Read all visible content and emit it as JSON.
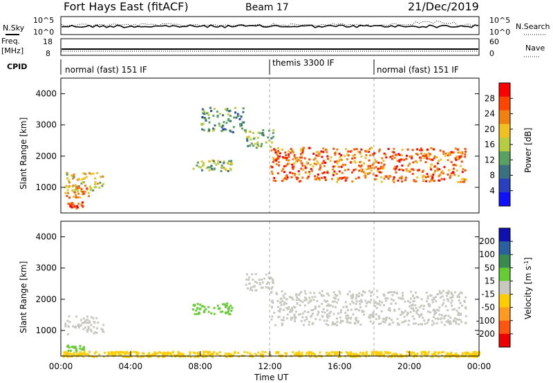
{
  "header": {
    "title": "Fort Hays East (fitACF)",
    "beam": "Beam 17",
    "date": "21/Dec/2019"
  },
  "left_labels": {
    "nsky": "N.Sky",
    "freq_top": "Freq.",
    "freq_unit": "[MHz]",
    "cpid": "CPID"
  },
  "right_labels": {
    "nsearch": "N.Search",
    "nave": "Nave"
  },
  "noise_axis": {
    "left_ticks": [
      "10^5",
      "10^0"
    ],
    "right_ticks": [
      "10^5",
      "10^0"
    ]
  },
  "freq_axis": {
    "left_ticks": [
      "18",
      "8"
    ],
    "right_ticks": [
      "60",
      "0"
    ]
  },
  "cpid_segments": [
    {
      "label": "normal (fast) 151 IF",
      "start_hour": 0
    },
    {
      "label": "themis 3300 IF",
      "start_hour": 12
    },
    {
      "label": "normal (fast) 151 IF",
      "start_hour": 18
    }
  ],
  "power_panel": {
    "ylabel": "Slant Range [km]",
    "yticks": [
      1000,
      2000,
      3000,
      4000
    ],
    "colorbar_label": "Power [dB]",
    "colorbar_ticks": [
      "28",
      "24",
      "20",
      "16",
      "12",
      "8",
      "4"
    ],
    "colorbar_colors": [
      "#ff0000",
      "#ff4500",
      "#f08010",
      "#f0c020",
      "#b8cc40",
      "#5aa060",
      "#3a7080",
      "#2840c0",
      "#1010ff"
    ]
  },
  "velocity_panel": {
    "ylabel": "Slant Range [km]",
    "yticks": [
      1000,
      2000,
      3000,
      4000
    ],
    "colorbar_label": "Velocity [m s^-1]",
    "colorbar_ticks": [
      "200",
      "100",
      "50",
      "15",
      "-15",
      "-50",
      "-100",
      "-200"
    ],
    "colorbar_colors": [
      "#1010b0",
      "#2a60a0",
      "#3a8a50",
      "#66cc33",
      "#c8c8c0",
      "#ffcc00",
      "#ff9922",
      "#ff5511",
      "#ee0000"
    ]
  },
  "xaxis": {
    "title": "Time UT",
    "ticks": [
      "00:00",
      "04:00",
      "08:00",
      "12:00",
      "16:00",
      "20:00",
      "00:00"
    ]
  },
  "chart_data": {
    "type": "heatmap",
    "x_range_hours": [
      0,
      24
    ],
    "y_range_km": [
      180,
      4500
    ],
    "dashed_markers_hours": [
      12,
      18
    ],
    "power_blobs": [
      {
        "t0": 0.2,
        "t1": 2.4,
        "r0": 900,
        "r1": 1500,
        "value_db": 18
      },
      {
        "t0": 0.2,
        "t1": 1.6,
        "r0": 700,
        "r1": 1100,
        "value_db": 22
      },
      {
        "t0": 0.3,
        "t1": 1.3,
        "r0": 350,
        "r1": 550,
        "value_db": 26
      },
      {
        "t0": 7.5,
        "t1": 9.8,
        "r0": 1550,
        "r1": 1900,
        "value_db": 14
      },
      {
        "t0": 8.0,
        "t1": 10.5,
        "r0": 2800,
        "r1": 3600,
        "value_db": 10
      },
      {
        "t0": 10.5,
        "t1": 12.2,
        "r0": 2300,
        "r1": 2900,
        "value_db": 12
      },
      {
        "t0": 12.0,
        "t1": 23.2,
        "r0": 1200,
        "r1": 2300,
        "value_db": 24
      }
    ],
    "velocity_blobs": [
      {
        "t0": 0.2,
        "t1": 2.4,
        "r0": 900,
        "r1": 1500,
        "value_ms": 0
      },
      {
        "t0": 0.3,
        "t1": 1.3,
        "r0": 350,
        "r1": 550,
        "value_ms": 30
      },
      {
        "t0": 7.5,
        "t1": 9.8,
        "r0": 1550,
        "r1": 1900,
        "value_ms": 30
      },
      {
        "t0": 10.5,
        "t1": 12.2,
        "r0": 2300,
        "r1": 2900,
        "value_ms": 0
      },
      {
        "t0": 12.0,
        "t1": 23.2,
        "r0": 1200,
        "r1": 2300,
        "value_ms": 0
      },
      {
        "t0": 0.0,
        "t1": 24.0,
        "r0": 180,
        "r1": 350,
        "value_ms": -40
      }
    ]
  }
}
